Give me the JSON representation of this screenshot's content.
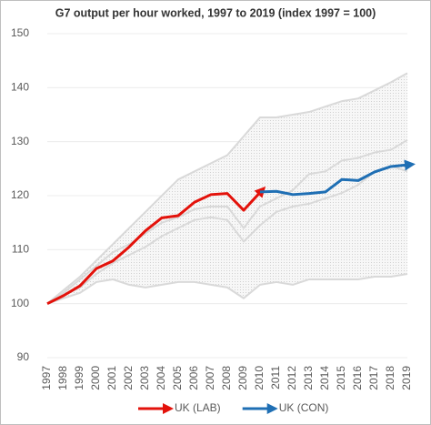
{
  "chart_data": {
    "type": "line",
    "title": "G7 output per hour worked, 1997 to 2019 (index 1997 = 100)",
    "categories": [
      "1997",
      "1998",
      "1999",
      "2000",
      "2001",
      "2002",
      "2003",
      "2004",
      "2005",
      "2006",
      "2007",
      "2008",
      "2009",
      "2010",
      "2011",
      "2012",
      "2013",
      "2014",
      "2015",
      "2016",
      "2017",
      "2018",
      "2019"
    ],
    "series": [
      {
        "color": "#d9d9d9",
        "values": [
          100,
          102.5,
          105,
          108,
          111,
          114,
          117,
          120,
          123,
          124.5,
          126,
          127.5,
          131,
          134.5,
          134.5,
          135,
          135.5,
          136.5,
          137.5,
          138,
          139.5,
          141,
          142.7
        ]
      },
      {
        "color": "#d9d9d9",
        "values": [
          100,
          101,
          102,
          104,
          104.5,
          103.5,
          103,
          103.5,
          104,
          104,
          103.5,
          103,
          101,
          103.5,
          104,
          103.5,
          104.5,
          104.5,
          104.5,
          104.5,
          105,
          105,
          105.5
        ]
      },
      {
        "color": "#d9d9d9",
        "values": [
          100,
          102,
          104.5,
          107,
          109.5,
          111,
          113,
          115,
          116,
          117.5,
          118,
          118,
          114,
          118,
          119.5,
          121,
          124,
          124.5,
          126.5,
          127,
          128,
          128.5,
          130.3
        ]
      },
      {
        "color": "#d9d9d9",
        "values": [
          100,
          101.5,
          103,
          105.5,
          107.5,
          109,
          110.5,
          112.5,
          114,
          115.5,
          116,
          115.5,
          111.5,
          114.5,
          117,
          118,
          118.5,
          119.5,
          120.5,
          122,
          124.5,
          125.5,
          124.5
        ]
      },
      {
        "name": "UK (LAB)",
        "color": "#e3120b",
        "values": [
          100,
          101.5,
          103.3,
          106.5,
          107.9,
          110.5,
          113.5,
          115.9,
          116.3,
          118.8,
          120.2,
          120.4,
          117.3,
          120.6,
          null,
          null,
          null,
          null,
          null,
          null,
          null,
          null,
          null
        ]
      },
      {
        "name": "UK (CON)",
        "color": "#1f6fb4",
        "values": [
          null,
          null,
          null,
          null,
          null,
          null,
          null,
          null,
          null,
          null,
          null,
          null,
          null,
          120.7,
          120.8,
          120.2,
          120.4,
          120.7,
          123.0,
          122.8,
          124.4,
          125.4,
          125.7
        ]
      }
    ],
    "ylim": [
      90,
      150
    ],
    "yticks": [
      90,
      100,
      110,
      120,
      130,
      140,
      150
    ],
    "grid": true
  }
}
